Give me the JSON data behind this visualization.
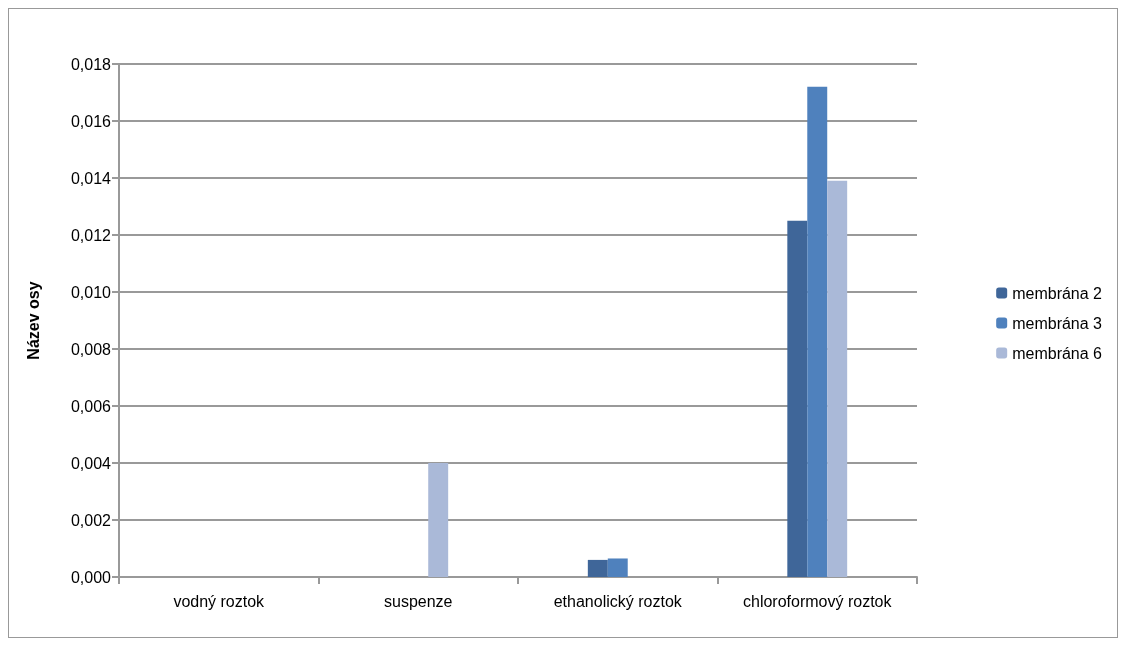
{
  "chart_data": {
    "type": "bar",
    "ylabel": "Název osy",
    "categories": [
      "vodný roztok",
      "suspenze",
      "ethanolický roztok",
      "chloroformový roztok"
    ],
    "series": [
      {
        "name": "membrána 2",
        "color": "#3f6699",
        "values": [
          0,
          0,
          0.0006,
          0.0125
        ]
      },
      {
        "name": "membrána 3",
        "color": "#4f81bd",
        "values": [
          0,
          0,
          0.00065,
          0.0172
        ]
      },
      {
        "name": "membrána 6",
        "color": "#aab9d8",
        "values": [
          0,
          0.004,
          0,
          0.0139
        ]
      }
    ],
    "ylim": [
      0,
      0.018
    ],
    "yticks": [
      {
        "value": 0,
        "label": "0,000"
      },
      {
        "value": 0.002,
        "label": "0,002"
      },
      {
        "value": 0.004,
        "label": "0,004"
      },
      {
        "value": 0.006,
        "label": "0,006"
      },
      {
        "value": 0.008,
        "label": "0,008"
      },
      {
        "value": 0.01,
        "label": "0,010"
      },
      {
        "value": 0.012,
        "label": "0,012"
      },
      {
        "value": 0.014,
        "label": "0,014"
      },
      {
        "value": 0.016,
        "label": "0,016"
      },
      {
        "value": 0.018,
        "label": "0,018"
      }
    ],
    "grid": "y",
    "legend": "right"
  }
}
